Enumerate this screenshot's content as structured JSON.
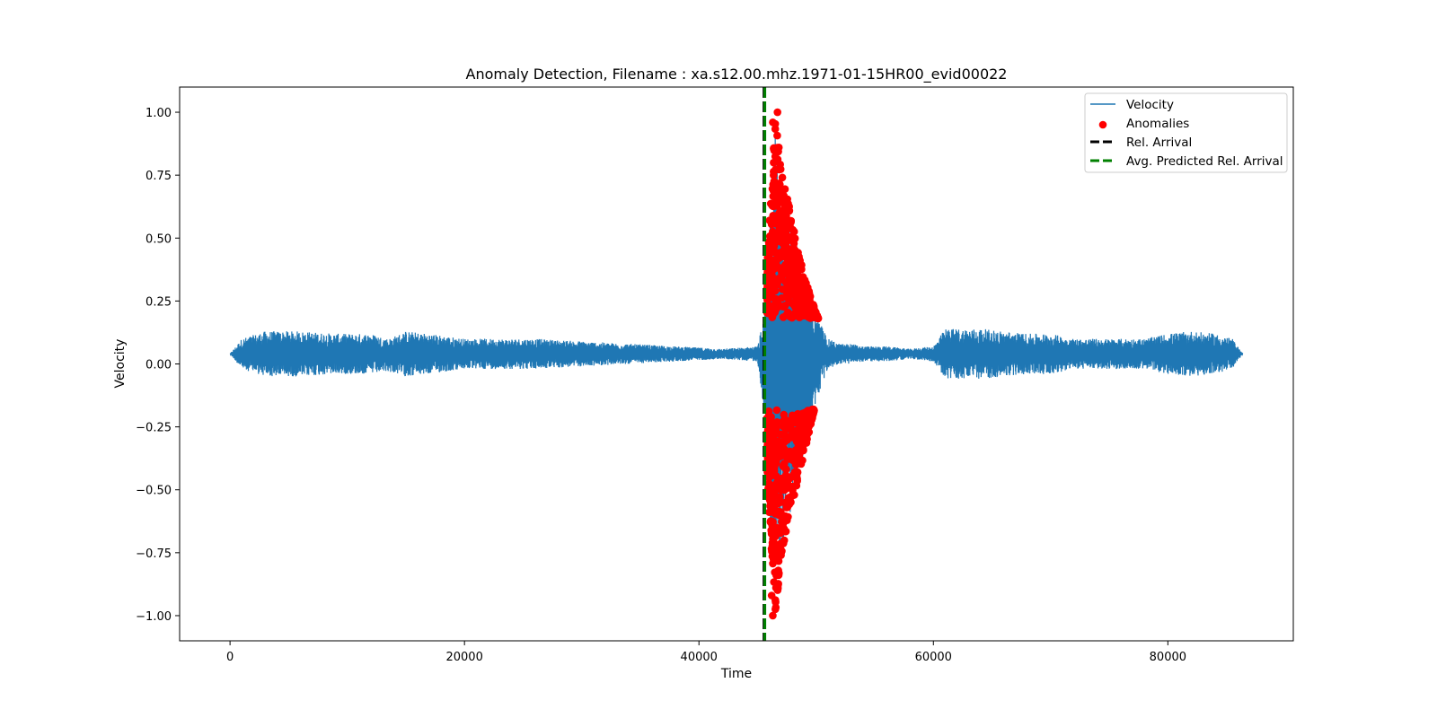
{
  "chart_data": {
    "type": "line",
    "title": "Anomaly Detection, Filename : xa.s12.00.mhz.1971-01-15HR00_evid00022",
    "xlabel": "Time",
    "ylabel": "Velocity",
    "xlim": [
      -4300,
      90700
    ],
    "ylim": [
      -1.1,
      1.1
    ],
    "xticks": [
      0,
      20000,
      40000,
      60000,
      80000
    ],
    "yticks": [
      1.0,
      0.75,
      0.5,
      0.25,
      0.0,
      -0.25,
      -0.5,
      -0.75,
      -1.0
    ],
    "xtick_labels": [
      "0",
      "20000",
      "40000",
      "60000",
      "80000"
    ],
    "ytick_labels": [
      "1.00",
      "0.75",
      "0.50",
      "0.25",
      "0.00",
      "−0.25",
      "−0.50",
      "−0.75",
      "−1.00"
    ],
    "grid": false,
    "legend_position": "top-right",
    "series": [
      {
        "name": "Velocity",
        "kind": "line",
        "color": "#1f77b4",
        "baseline": 0.04,
        "envelope": {
          "x": [
            0,
            1000,
            3000,
            6000,
            9000,
            12000,
            13500,
            15000,
            17000,
            20000,
            23000,
            26000,
            30000,
            34000,
            38000,
            42000,
            45000,
            45600,
            46000,
            46500,
            47000,
            48000,
            49000,
            50000,
            51000,
            52000,
            53000,
            54000,
            56000,
            58000,
            60000,
            61000,
            62000,
            64000,
            66000,
            68000,
            70000,
            72000,
            74000,
            76000,
            78000,
            80000,
            82000,
            84000,
            85500,
            86400
          ],
          "upper": [
            0.04,
            0.1,
            0.13,
            0.13,
            0.12,
            0.12,
            0.1,
            0.13,
            0.12,
            0.1,
            0.1,
            0.1,
            0.09,
            0.08,
            0.07,
            0.06,
            0.07,
            0.2,
            0.55,
            1.0,
            0.8,
            0.55,
            0.35,
            0.2,
            0.1,
            0.08,
            0.08,
            0.07,
            0.07,
            0.06,
            0.07,
            0.14,
            0.14,
            0.14,
            0.13,
            0.12,
            0.12,
            0.1,
            0.1,
            0.1,
            0.1,
            0.12,
            0.13,
            0.12,
            0.1,
            0.04
          ],
          "lower": [
            0.04,
            -0.02,
            -0.05,
            -0.05,
            -0.04,
            -0.04,
            -0.03,
            -0.05,
            -0.04,
            -0.02,
            -0.02,
            -0.02,
            -0.01,
            0.0,
            0.01,
            0.02,
            0.01,
            -0.2,
            -0.6,
            -1.0,
            -0.78,
            -0.55,
            -0.35,
            -0.15,
            -0.02,
            0.0,
            0.0,
            0.01,
            0.01,
            0.02,
            0.01,
            -0.06,
            -0.06,
            -0.06,
            -0.05,
            -0.04,
            -0.04,
            -0.02,
            -0.02,
            -0.02,
            -0.02,
            -0.04,
            -0.05,
            -0.04,
            -0.02,
            0.04
          ]
        }
      },
      {
        "name": "Anomalies",
        "kind": "scatter",
        "color": "#ff0000",
        "x_range": [
          45800,
          50200
        ],
        "abs_threshold": 0.18,
        "extremes": [
          [
            46300,
            -1.0
          ],
          [
            46300,
            0.96
          ],
          [
            46700,
            1.0
          ],
          [
            46200,
            -0.92
          ],
          [
            46600,
            -0.84
          ],
          [
            47000,
            -0.76
          ]
        ]
      },
      {
        "name": "Rel. Arrival",
        "kind": "vline",
        "color": "#000000",
        "x": 45550
      },
      {
        "name": "Avg. Predicted Rel. Arrival",
        "kind": "vline",
        "color": "#008000",
        "x": 45620
      }
    ]
  }
}
